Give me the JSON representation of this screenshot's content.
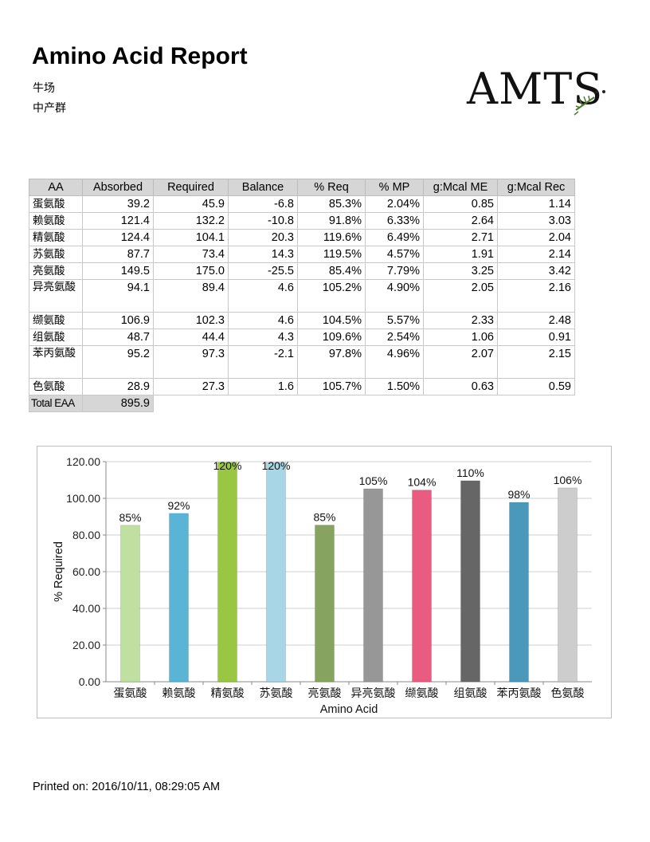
{
  "header": {
    "title": "Amino Acid Report",
    "subtitle1": "牛场",
    "subtitle2": "中产群",
    "logo_text": "AMTS"
  },
  "table": {
    "columns": [
      "AA",
      "Absorbed",
      "Required",
      "Balance",
      "% Req",
      "% MP",
      "g:Mcal ME",
      "g:Mcal Rec"
    ],
    "rows": [
      {
        "aa": "蛋氨酸",
        "absorbed": "39.2",
        "required": "45.9",
        "balance": "-6.8",
        "req": "85.3%",
        "mp": "2.04%",
        "me": "0.85",
        "rec": "1.14"
      },
      {
        "aa": "赖氨酸",
        "absorbed": "121.4",
        "required": "132.2",
        "balance": "-10.8",
        "req": "91.8%",
        "mp": "6.33%",
        "me": "2.64",
        "rec": "3.03"
      },
      {
        "aa": "精氨酸",
        "absorbed": "124.4",
        "required": "104.1",
        "balance": "20.3",
        "req": "119.6%",
        "mp": "6.49%",
        "me": "2.71",
        "rec": "2.04"
      },
      {
        "aa": "苏氨酸",
        "absorbed": "87.7",
        "required": "73.4",
        "balance": "14.3",
        "req": "119.5%",
        "mp": "4.57%",
        "me": "1.91",
        "rec": "2.14"
      },
      {
        "aa": "亮氨酸",
        "absorbed": "149.5",
        "required": "175.0",
        "balance": "-25.5",
        "req": "85.4%",
        "mp": "7.79%",
        "me": "3.25",
        "rec": "3.42"
      },
      {
        "aa": "异亮氨酸",
        "absorbed": "94.1",
        "required": "89.4",
        "balance": "4.6",
        "req": "105.2%",
        "mp": "4.90%",
        "me": "2.05",
        "rec": "2.16"
      },
      {
        "aa": "缬氨酸",
        "absorbed": "106.9",
        "required": "102.3",
        "balance": "4.6",
        "req": "104.5%",
        "mp": "5.57%",
        "me": "2.33",
        "rec": "2.48"
      },
      {
        "aa": "组氨酸",
        "absorbed": "48.7",
        "required": "44.4",
        "balance": "4.3",
        "req": "109.6%",
        "mp": "2.54%",
        "me": "1.06",
        "rec": "0.91"
      },
      {
        "aa": "苯丙氨酸",
        "absorbed": "95.2",
        "required": "97.3",
        "balance": "-2.1",
        "req": "97.8%",
        "mp": "4.96%",
        "me": "2.07",
        "rec": "2.15"
      },
      {
        "aa": "色氨酸",
        "absorbed": "28.9",
        "required": "27.3",
        "balance": "1.6",
        "req": "105.7%",
        "mp": "1.50%",
        "me": "0.63",
        "rec": "0.59"
      }
    ],
    "total_label": "Total EAA",
    "total_value": "895.9"
  },
  "chart_data": {
    "type": "bar",
    "categories": [
      "蛋氨酸",
      "赖氨酸",
      "精氨酸",
      "苏氨酸",
      "亮氨酸",
      "异亮氨酸",
      "缬氨酸",
      "组氨酸",
      "苯丙氨酸",
      "色氨酸"
    ],
    "values": [
      85.3,
      91.8,
      119.6,
      119.5,
      85.4,
      105.2,
      104.5,
      109.6,
      97.8,
      105.7
    ],
    "labels": [
      "85%",
      "92%",
      "120%",
      "120%",
      "85%",
      "105%",
      "104%",
      "110%",
      "98%",
      "106%"
    ],
    "colors": [
      "#bfe0a0",
      "#5ab4d6",
      "#99c744",
      "#a9d6e6",
      "#86a35f",
      "#979797",
      "#e95c7f",
      "#666666",
      "#4a98ba",
      "#cdcdcd"
    ],
    "xlabel": "Amino Acid",
    "ylabel": "% Required",
    "ylim": [
      0,
      120
    ],
    "yticks": [
      "0.00",
      "20.00",
      "40.00",
      "60.00",
      "80.00",
      "100.00",
      "120.00"
    ],
    "grid": true,
    "legend": "none"
  },
  "footer": {
    "printed": "Printed on: 2016/10/11, 08:29:05 AM"
  }
}
